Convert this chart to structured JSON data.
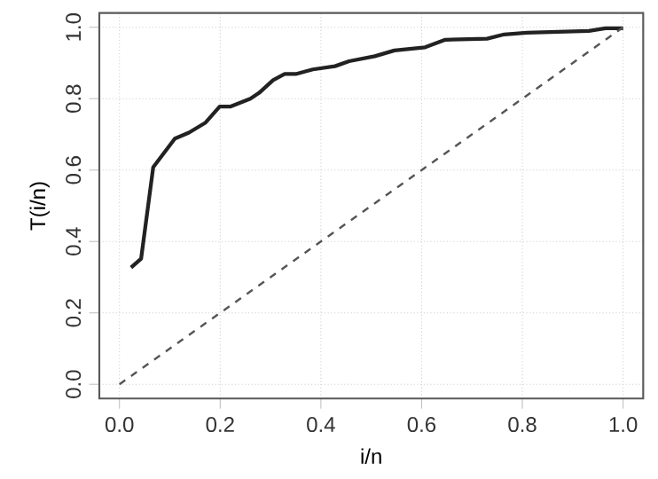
{
  "chart_data": {
    "type": "line",
    "xlabel": "i/n",
    "ylabel": "T(i/n)",
    "xlim": [
      -0.04,
      1.04
    ],
    "ylim": [
      -0.04,
      1.04
    ],
    "xticks": [
      {
        "value": 0,
        "label": "0.0"
      },
      {
        "value": 0.2,
        "label": "0.2"
      },
      {
        "value": 0.4,
        "label": "0.4"
      },
      {
        "value": 0.6,
        "label": "0.6"
      },
      {
        "value": 0.8,
        "label": "0.8"
      },
      {
        "value": 1,
        "label": "1.0"
      }
    ],
    "yticks": [
      {
        "value": 0,
        "label": "0.0"
      },
      {
        "value": 0.2,
        "label": "0.2"
      },
      {
        "value": 0.4,
        "label": "0.4"
      },
      {
        "value": 0.6,
        "label": "0.6"
      },
      {
        "value": 0.8,
        "label": "0.8"
      },
      {
        "value": 1,
        "label": "1.0"
      }
    ],
    "grid": true,
    "marker": "none",
    "series": [
      {
        "color": "#222222",
        "line_style": "solid",
        "x": [
          0.023,
          0.043,
          0.067,
          0.11,
          0.138,
          0.171,
          0.199,
          0.221,
          0.26,
          0.277,
          0.305,
          0.328,
          0.35,
          0.384,
          0.428,
          0.456,
          0.507,
          0.546,
          0.607,
          0.647,
          0.73,
          0.764,
          0.809,
          0.932,
          0.965,
          1.0
        ],
        "values": [
          0.327,
          0.352,
          0.608,
          0.688,
          0.705,
          0.733,
          0.778,
          0.778,
          0.8,
          0.816,
          0.852,
          0.869,
          0.869,
          0.882,
          0.891,
          0.905,
          0.919,
          0.935,
          0.944,
          0.965,
          0.968,
          0.98,
          0.985,
          0.99,
          0.997,
          0.997
        ]
      },
      {
        "color": "#555555",
        "line_style": "dashed",
        "x": [
          0,
          1
        ],
        "values": [
          0,
          1
        ]
      }
    ]
  }
}
